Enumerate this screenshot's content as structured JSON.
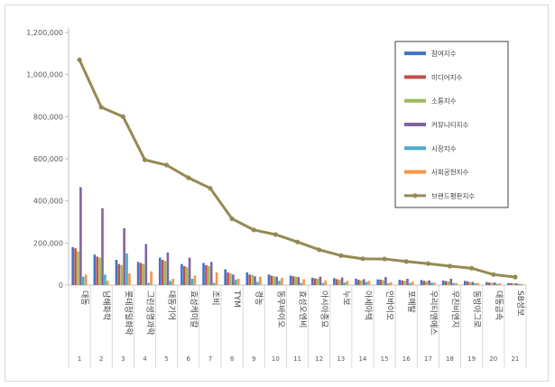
{
  "chart_data": {
    "type": "bar",
    "categories": [
      "대동",
      "남해화학",
      "롯데정밀화학",
      "그린생명과학",
      "대동기어",
      "효성케미칼",
      "조비",
      "TYM",
      "경농",
      "동우바이오",
      "효성오엔비",
      "아시아종묘",
      "누보",
      "아세아텍",
      "인바이오",
      "포메탈",
      "우리티앤에스",
      "우진비앤지",
      "동방아그로",
      "대동금속",
      "SB성보"
    ],
    "ranks": [
      "1",
      "2",
      "3",
      "4",
      "5",
      "6",
      "7",
      "8",
      "9",
      "10",
      "11",
      "12",
      "13",
      "14",
      "15",
      "16",
      "17",
      "18",
      "19",
      "20",
      "21"
    ],
    "ylim": [
      0,
      1200000
    ],
    "yticks": [
      "0",
      "200,000",
      "400,000",
      "600,000",
      "800,000",
      "1,000,000",
      "1,200,000"
    ],
    "legend_position": "right",
    "series": [
      {
        "name": "참여지수",
        "color": "#4472c4",
        "values": [
          180000,
          145000,
          120000,
          110000,
          130000,
          100000,
          105000,
          75000,
          60000,
          50000,
          45000,
          35000,
          33000,
          30000,
          27000,
          25000,
          24000,
          22000,
          20000,
          14000,
          10000
        ]
      },
      {
        "name": "미디어지수",
        "color": "#c0504d",
        "values": [
          175000,
          135000,
          100000,
          105000,
          120000,
          90000,
          95000,
          60000,
          50000,
          45000,
          42000,
          32000,
          28000,
          25000,
          26000,
          22000,
          20000,
          19000,
          17000,
          12000,
          9000
        ]
      },
      {
        "name": "소통지수",
        "color": "#9bbb59",
        "values": [
          160000,
          130000,
          95000,
          100000,
          115000,
          85000,
          90000,
          55000,
          48000,
          42000,
          40000,
          30000,
          25000,
          22000,
          24000,
          20000,
          18000,
          17000,
          15000,
          10000,
          8000
        ]
      },
      {
        "name": "커뮤니티지수",
        "color": "#8064a2",
        "values": [
          465000,
          365000,
          270000,
          195000,
          155000,
          130000,
          110000,
          50000,
          42000,
          40000,
          38000,
          40000,
          36000,
          28000,
          38000,
          30000,
          22000,
          30000,
          15000,
          12000,
          9000
        ]
      },
      {
        "name": "시장지수",
        "color": "#4bacc6",
        "values": [
          40000,
          50000,
          150000,
          10000,
          20000,
          30000,
          10000,
          25000,
          15000,
          20000,
          10000,
          10000,
          12000,
          15000,
          8000,
          10000,
          12000,
          10000,
          8000,
          6000,
          5000
        ]
      },
      {
        "name": "사회공헌지수",
        "color": "#f79646",
        "values": [
          50000,
          20000,
          55000,
          65000,
          30000,
          45000,
          60000,
          30000,
          40000,
          35000,
          28000,
          22000,
          20000,
          20000,
          14000,
          16000,
          12000,
          10000,
          10000,
          8000,
          6000
        ]
      },
      {
        "name": "브랜드평판지수",
        "color": "#948a54",
        "type": "line",
        "values": [
          1070000,
          845000,
          800000,
          595000,
          570000,
          510000,
          460000,
          315000,
          262000,
          240000,
          205000,
          168000,
          140000,
          125000,
          124000,
          112000,
          102000,
          90000,
          80000,
          50000,
          38000
        ]
      }
    ]
  }
}
